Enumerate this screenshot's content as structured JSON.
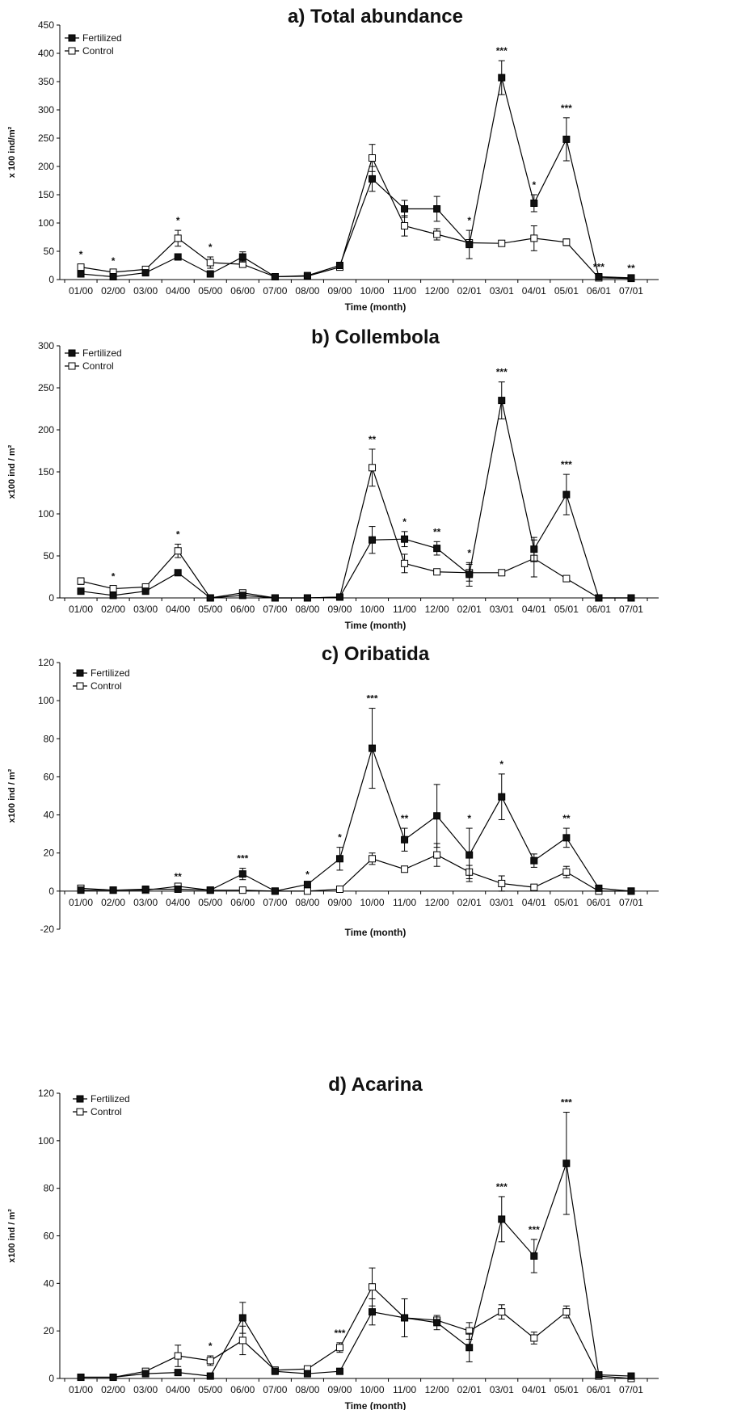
{
  "chart_data": [
    {
      "type": "line",
      "title": "a) Total abundance",
      "xlabel": "Time (month)",
      "ylabel": "x 100 ind/m²",
      "ylim": [
        0,
        450
      ],
      "yticks": [
        0,
        50,
        100,
        150,
        200,
        250,
        300,
        350,
        400,
        450
      ],
      "categories": [
        "01/00",
        "02/00",
        "03/00",
        "04/00",
        "05/00",
        "06/00",
        "07/00",
        "08/00",
        "09/00",
        "10/00",
        "11/00",
        "12/00",
        "02/01",
        "03/01",
        "04/01",
        "05/01",
        "06/01",
        "07/01"
      ],
      "legend": "top-left",
      "series": [
        {
          "name": "Fertilized",
          "marker": "filled-square",
          "values": [
            10,
            5,
            12,
            40,
            10,
            40,
            5,
            7,
            25,
            178,
            125,
            125,
            62,
            357,
            135,
            248,
            5,
            3
          ],
          "errors": [
            0,
            0,
            0,
            3,
            0,
            9,
            0,
            0,
            0,
            22,
            15,
            22,
            25,
            30,
            15,
            38,
            0,
            0
          ]
        },
        {
          "name": "Control",
          "marker": "open-square",
          "values": [
            22,
            13,
            18,
            73,
            30,
            27,
            5,
            6,
            22,
            215,
            95,
            80,
            65,
            64,
            73,
            66,
            3,
            2
          ],
          "errors": [
            5,
            3,
            3,
            14,
            10,
            4,
            0,
            0,
            0,
            24,
            18,
            10,
            0,
            0,
            22,
            6,
            0,
            0
          ]
        }
      ],
      "significance": [
        "*",
        "*",
        "",
        "*",
        "*",
        "",
        "",
        "",
        "",
        "",
        "",
        "",
        "*",
        "***",
        "*",
        "***",
        "***",
        "**"
      ]
    },
    {
      "type": "line",
      "title": "b) Collembola",
      "xlabel": "Time (month)",
      "ylabel": "x100 ind / m²",
      "ylim": [
        0,
        300
      ],
      "yticks": [
        0,
        50,
        100,
        150,
        200,
        250,
        300
      ],
      "categories": [
        "01/00",
        "02/00",
        "03/00",
        "04/00",
        "05/00",
        "06/00",
        "07/00",
        "08/00",
        "09/00",
        "10/00",
        "11/00",
        "12/00",
        "02/01",
        "03/01",
        "04/01",
        "05/01",
        "06/01",
        "07/01"
      ],
      "legend": "top-left",
      "series": [
        {
          "name": "Fertilized",
          "marker": "filled-square",
          "values": [
            8,
            3,
            8,
            30,
            0,
            3,
            0,
            0,
            1,
            69,
            70,
            59,
            28,
            235,
            58,
            123,
            0,
            0
          ],
          "errors": [
            0,
            0,
            0,
            3,
            0,
            0,
            0,
            0,
            0,
            16,
            9,
            8,
            14,
            22,
            14,
            24,
            0,
            0
          ]
        },
        {
          "name": "Control",
          "marker": "open-square",
          "values": [
            20,
            11,
            13,
            56,
            0,
            6,
            0,
            0,
            1,
            155,
            41,
            31,
            30,
            30,
            47,
            23,
            0,
            0
          ],
          "errors": [
            4,
            3,
            3,
            8,
            0,
            0,
            0,
            0,
            0,
            22,
            11,
            0,
            10,
            0,
            22,
            0,
            0,
            0
          ]
        }
      ],
      "significance": [
        "",
        "*",
        "",
        "*",
        "",
        "",
        "",
        "",
        "",
        "**",
        "*",
        "**",
        "*",
        "***",
        "",
        "***",
        "",
        ""
      ]
    },
    {
      "type": "line",
      "title": "c) Oribatida",
      "xlabel": "Time (month)",
      "ylabel": "x100 ind / m²",
      "ylim": [
        -20,
        120
      ],
      "yticks": [
        -20,
        0,
        20,
        40,
        60,
        80,
        100,
        120
      ],
      "categories": [
        "01/00",
        "02/00",
        "03/00",
        "04/00",
        "05/00",
        "06/00",
        "07/00",
        "08/00",
        "09/00",
        "10/00",
        "11/00",
        "12/00",
        "02/01",
        "03/01",
        "04/01",
        "05/01",
        "06/01",
        "07/01"
      ],
      "legend": "top-left",
      "series": [
        {
          "name": "Fertilized",
          "marker": "filled-square",
          "values": [
            0.5,
            0.5,
            1,
            1,
            0.5,
            9,
            0,
            3.5,
            17,
            75,
            27,
            39.5,
            19,
            49.5,
            16,
            28,
            1.5,
            0
          ],
          "errors": [
            0,
            0,
            0,
            0,
            0,
            3,
            0,
            0,
            6,
            21,
            6,
            16.5,
            14,
            12,
            3.5,
            5,
            0,
            0
          ]
        },
        {
          "name": "Control",
          "marker": "open-square",
          "values": [
            1.5,
            0.5,
            0.5,
            2.5,
            0.5,
            0.5,
            0,
            0,
            1,
            17,
            11.5,
            19,
            10,
            4,
            2,
            10,
            0,
            0
          ],
          "errors": [
            0,
            0,
            0,
            0,
            0,
            0,
            0,
            0,
            0,
            3,
            1.5,
            6,
            3.5,
            4,
            0,
            3,
            0,
            0
          ]
        }
      ],
      "significance": [
        "",
        "",
        "",
        "**",
        "",
        "***",
        "",
        "*",
        "*",
        "***",
        "**",
        "",
        "*",
        "*",
        "",
        "**",
        "",
        ""
      ]
    },
    {
      "type": "line",
      "title": "d) Acarina",
      "xlabel": "Time (month)",
      "ylabel": "x100 ind / m²",
      "ylim": [
        0,
        120
      ],
      "yticks": [
        0,
        20,
        40,
        60,
        80,
        100,
        120
      ],
      "categories": [
        "01/00",
        "02/00",
        "03/00",
        "04/00",
        "05/00",
        "06/00",
        "07/00",
        "08/00",
        "09/00",
        "10/00",
        "11/00",
        "12/00",
        "02/01",
        "03/01",
        "04/01",
        "05/01",
        "06/01",
        "07/01"
      ],
      "legend": "top-left",
      "series": [
        {
          "name": "Fertilized",
          "marker": "filled-square",
          "values": [
            0.5,
            0.5,
            2,
            2.5,
            1,
            25.5,
            3,
            2,
            3,
            28,
            25.5,
            23.5,
            13,
            67,
            51.5,
            90.5,
            1.5,
            1
          ],
          "errors": [
            0,
            0,
            0,
            0,
            0,
            6.5,
            0,
            0,
            0,
            5.5,
            8,
            3,
            6,
            9.5,
            7,
            21.5,
            0,
            0
          ]
        },
        {
          "name": "Control",
          "marker": "open-square",
          "values": [
            0.5,
            0.5,
            3,
            9.5,
            7.5,
            16,
            3.5,
            4,
            13,
            38.5,
            25.5,
            24.5,
            20,
            28,
            17,
            28,
            1,
            0
          ],
          "errors": [
            0,
            0,
            0,
            4.5,
            2,
            6,
            0,
            0,
            2,
            8,
            0,
            0,
            3.5,
            3,
            2.5,
            2.5,
            0,
            0
          ]
        }
      ],
      "significance": [
        "",
        "",
        "",
        "",
        "*",
        "",
        "",
        "",
        "***",
        "",
        "",
        "",
        "",
        "***",
        "***",
        "***",
        "",
        ""
      ]
    }
  ]
}
